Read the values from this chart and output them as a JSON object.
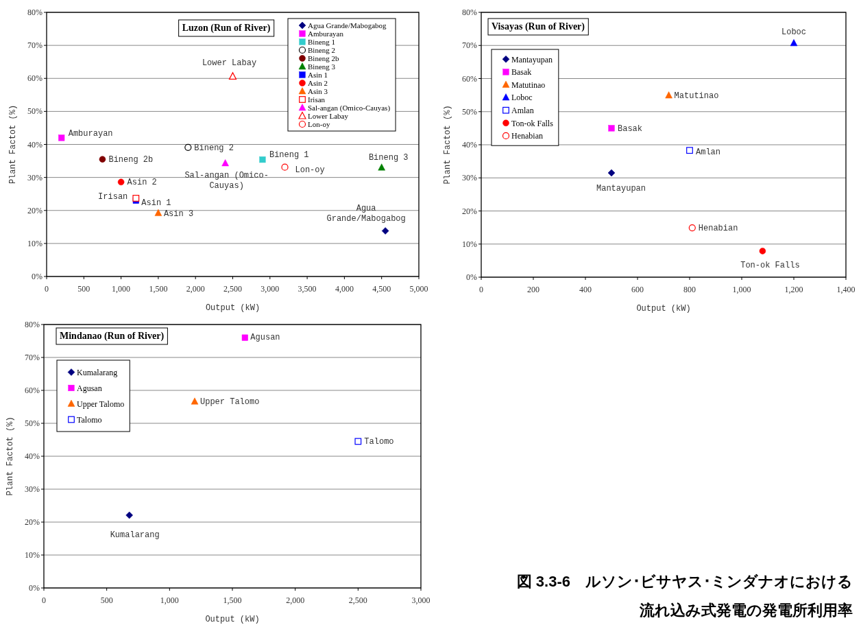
{
  "chart_data": [
    {
      "type": "scatter",
      "title": "Luzon (Run of River)",
      "xlabel": "Output (kW)",
      "ylabel": "Plant Factot (%)",
      "grid": "y",
      "legend": "top right",
      "xlim": [
        0,
        5000
      ],
      "xticks": [
        0,
        500,
        {
          "value": 1000,
          "label": "1,000"
        },
        {
          "value": 1500,
          "label": "1,500"
        },
        {
          "value": 2000,
          "label": "2,000"
        },
        {
          "value": 2500,
          "label": "2,500"
        },
        {
          "value": 3000,
          "label": "3,000"
        },
        {
          "value": 3500,
          "label": "3,500"
        },
        {
          "value": 4000,
          "label": "4,000"
        },
        {
          "value": 4500,
          "label": "4,500"
        },
        {
          "value": 5000,
          "label": "5,000"
        }
      ],
      "ylim": [
        0,
        80
      ],
      "yticks": [
        {
          "value": 0,
          "label": "0%"
        },
        {
          "value": 10,
          "label": "10%"
        },
        {
          "value": 20,
          "label": "20%"
        },
        {
          "value": 30,
          "label": "30%"
        },
        {
          "value": 40,
          "label": "40%"
        },
        {
          "value": 50,
          "label": "50%"
        },
        {
          "value": 60,
          "label": "60%"
        },
        {
          "value": 70,
          "label": "70%"
        },
        {
          "value": 80,
          "label": "80%"
        }
      ],
      "series": [
        {
          "name": "Agua Grande/Mabogabog",
          "color": "#000080",
          "marker": "diamond",
          "x": [
            4550
          ],
          "values": [
            13.8
          ]
        },
        {
          "name": "Amburayan",
          "color": "#ff00ff",
          "marker": "square",
          "x": [
            200
          ],
          "values": [
            42
          ]
        },
        {
          "name": "Bineng 1",
          "color": "#33cccc",
          "marker": "square",
          "x": [
            2900
          ],
          "values": [
            35.4
          ]
        },
        {
          "name": "Bineng 2",
          "color": "#000000",
          "marker": "circle",
          "x": [
            1900
          ],
          "values": [
            39.1
          ]
        },
        {
          "name": "Bineng 2b",
          "color": "#800000",
          "marker": "circle",
          "x": [
            750
          ],
          "values": [
            35.5
          ]
        },
        {
          "name": "Bineng 3",
          "color": "#008000",
          "marker": "triangle",
          "x": [
            4500
          ],
          "values": [
            33.0
          ]
        },
        {
          "name": "Asin 1",
          "color": "#0000ff",
          "marker": "square",
          "x": [
            1200
          ],
          "values": [
            23.0
          ]
        },
        {
          "name": "Asin 2",
          "color": "#ff0000",
          "marker": "circle",
          "x": [
            1000
          ],
          "values": [
            28.6
          ]
        },
        {
          "name": "Asin 3",
          "color": "#ff6600",
          "marker": "triangle",
          "x": [
            1500
          ],
          "values": [
            19.2
          ]
        },
        {
          "name": "Irisan",
          "color": "#ff0000",
          "marker": "square",
          "x": [
            1200
          ],
          "values": [
            23.7
          ]
        },
        {
          "name": "Sal-angan (Omico-Cauyas)",
          "color": "#ff00ff",
          "marker": "triangle",
          "x": [
            2400
          ],
          "values": [
            34.3
          ]
        },
        {
          "name": "Lower Labay",
          "color": "#ff0000",
          "marker": "triangle",
          "x": [
            2500
          ],
          "values": [
            60.6
          ]
        },
        {
          "name": "Lon-oy",
          "color": "#ff0000",
          "marker": "circle",
          "x": [
            3200
          ],
          "values": [
            33.1
          ]
        }
      ]
    },
    {
      "type": "scatter",
      "title": "Visayas (Run of River)",
      "xlabel": "Output (kW)",
      "ylabel": "Plant Factot (%)",
      "grid": "y",
      "legend": "top left",
      "xlim": [
        0,
        1400
      ],
      "xticks": [
        0,
        200,
        400,
        600,
        800,
        {
          "value": 1000,
          "label": "1,000"
        },
        {
          "value": 1200,
          "label": "1,200"
        },
        {
          "value": 1400,
          "label": "1,400"
        }
      ],
      "ylim": [
        0,
        80
      ],
      "yticks": [
        {
          "value": 0,
          "label": "0%"
        },
        {
          "value": 10,
          "label": "10%"
        },
        {
          "value": 20,
          "label": "20%"
        },
        {
          "value": 30,
          "label": "30%"
        },
        {
          "value": 40,
          "label": "40%"
        },
        {
          "value": 50,
          "label": "50%"
        },
        {
          "value": 60,
          "label": "60%"
        },
        {
          "value": 70,
          "label": "70%"
        },
        {
          "value": 80,
          "label": "80%"
        }
      ],
      "series": [
        {
          "name": "Mantayupan",
          "color": "#000080",
          "marker": "diamond",
          "x": [
            500
          ],
          "values": [
            31.5
          ]
        },
        {
          "name": "Basak",
          "color": "#ff00ff",
          "marker": "square",
          "x": [
            500
          ],
          "values": [
            45
          ]
        },
        {
          "name": "Matutinao",
          "color": "#ff6600",
          "marker": "triangle",
          "x": [
            720
          ],
          "values": [
            54.9
          ]
        },
        {
          "name": "Loboc",
          "color": "#0000ff",
          "marker": "triangle",
          "x": [
            1200
          ],
          "values": [
            70.7
          ]
        },
        {
          "name": "Amlan",
          "color": "#0000ff",
          "marker": "square",
          "x": [
            800
          ],
          "values": [
            38.3
          ]
        },
        {
          "name": "Ton-ok Falls",
          "color": "#ff0000",
          "marker": "circle",
          "x": [
            1080
          ],
          "values": [
            7.9
          ]
        },
        {
          "name": "Henabian",
          "color": "#ff0000",
          "marker": "circle",
          "x": [
            810
          ],
          "values": [
            14.9
          ]
        }
      ]
    },
    {
      "type": "scatter",
      "title": "Mindanao (Run of River)",
      "xlabel": "Output (kW)",
      "ylabel": "Plant Factot (%)",
      "grid": "y",
      "legend": "top left",
      "xlim": [
        0,
        3000
      ],
      "xticks": [
        0,
        500,
        {
          "value": 1000,
          "label": "1,000"
        },
        {
          "value": 1500,
          "label": "1,500"
        },
        {
          "value": 2000,
          "label": "2,000"
        },
        {
          "value": 2500,
          "label": "2,500"
        },
        {
          "value": 3000,
          "label": "3,000"
        }
      ],
      "ylim": [
        0,
        80
      ],
      "yticks": [
        {
          "value": 0,
          "label": "0%"
        },
        {
          "value": 10,
          "label": "10%"
        },
        {
          "value": 20,
          "label": "20%"
        },
        {
          "value": 30,
          "label": "30%"
        },
        {
          "value": 40,
          "label": "40%"
        },
        {
          "value": 50,
          "label": "50%"
        },
        {
          "value": 60,
          "label": "60%"
        },
        {
          "value": 70,
          "label": "70%"
        },
        {
          "value": 80,
          "label": "80%"
        }
      ],
      "series": [
        {
          "name": "Kumalarang",
          "color": "#000080",
          "marker": "diamond",
          "x": [
            680
          ],
          "values": [
            22.1
          ]
        },
        {
          "name": "Agusan",
          "color": "#ff00ff",
          "marker": "square",
          "x": [
            1600
          ],
          "values": [
            76
          ]
        },
        {
          "name": "Upper Talomo",
          "color": "#ff6600",
          "marker": "triangle",
          "x": [
            1200
          ],
          "values": [
            56.6
          ]
        },
        {
          "name": "Talomo",
          "color": "#0000ff",
          "marker": "square",
          "x": [
            2500
          ],
          "values": [
            44.5
          ]
        }
      ]
    },
    {
      "type": "other",
      "annotations": [
        "図 3.3-6　ルソン･ビサヤス･ミンダナオにおける",
        "流れ込み式発電の発電所利用率"
      ]
    }
  ]
}
